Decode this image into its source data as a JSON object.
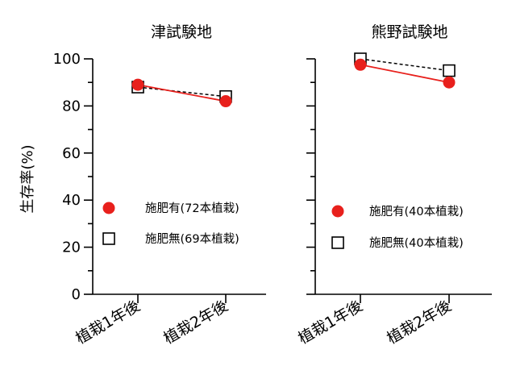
{
  "chart_data": {
    "type": "line",
    "ylabel": "生存率(%)",
    "ylim": [
      0,
      100
    ],
    "yticks": [
      "0",
      "20",
      "40",
      "60",
      "80",
      "100"
    ],
    "categories": [
      "植栽1年後",
      "植栽2年後"
    ],
    "colors": {
      "fertilized": "#e8201c",
      "unfertilized": "#000000"
    },
    "panels": [
      {
        "title": "津試験地",
        "series": [
          {
            "name": "施肥有(72本植栽)",
            "marker": "filled-circle",
            "line": "solid",
            "values": [
              89,
              82
            ]
          },
          {
            "name": "施肥無(69本植栽)",
            "marker": "open-square",
            "line": "dashed",
            "values": [
              88,
              84
            ]
          }
        ]
      },
      {
        "title": "熊野試験地",
        "series": [
          {
            "name": "施肥有(40本植栽)",
            "marker": "filled-circle",
            "line": "solid",
            "values": [
              97.5,
              90
            ]
          },
          {
            "name": "施肥無(40本植栽)",
            "marker": "open-square",
            "line": "dashed",
            "values": [
              100,
              95
            ]
          }
        ]
      }
    ]
  }
}
